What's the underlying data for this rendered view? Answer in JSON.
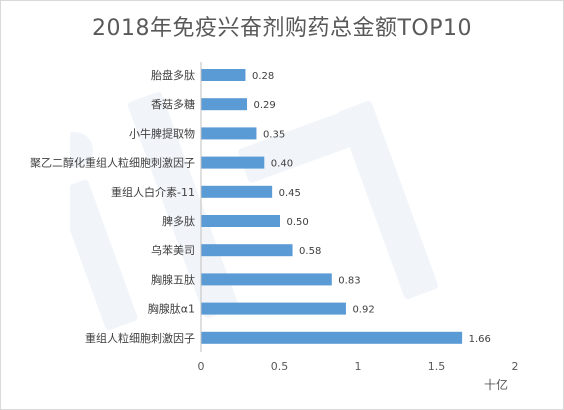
{
  "chart_data": {
    "type": "bar",
    "orientation": "horizontal",
    "title": "2018年免疫兴奋剂购药总金额TOP10",
    "unit": "十亿",
    "categories": [
      "胎盘多肽",
      "香菇多糖",
      "小牛脾提取物",
      "聚乙二醇化重组人粒细胞刺激因子",
      "重组人白介素-11",
      "脾多肽",
      "乌苯美司",
      "胸腺五肽",
      "胸腺肽α1",
      "重组人粒细胞刺激因子"
    ],
    "values": [
      0.28,
      0.29,
      0.35,
      0.4,
      0.45,
      0.5,
      0.58,
      0.83,
      0.92,
      1.66
    ],
    "value_labels": [
      "0.28",
      "0.29",
      "0.35",
      "0.40",
      "0.45",
      "0.50",
      "0.58",
      "0.83",
      "0.92",
      "1.66"
    ],
    "xlim": [
      0,
      2
    ],
    "xticks": [
      "0",
      "0.5",
      "1",
      "1.5",
      "2"
    ],
    "grid": false,
    "bar_color": "#5b9bd5"
  }
}
